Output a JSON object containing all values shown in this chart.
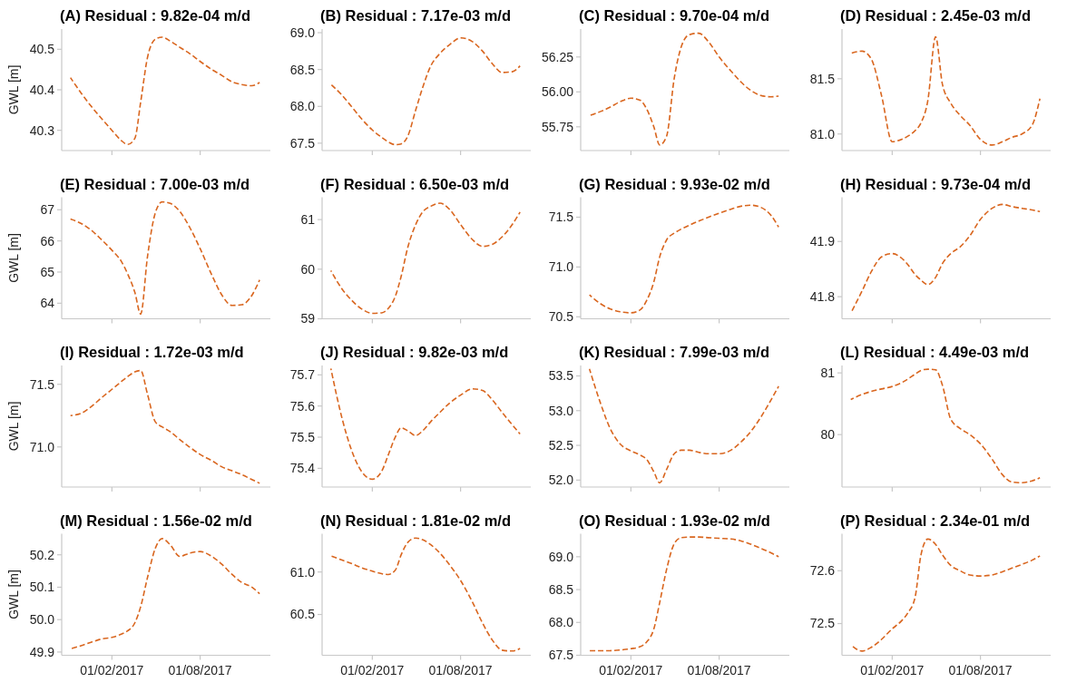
{
  "chart_data": [
    {
      "type": "line",
      "title": "(A) Residual : 9.82e-04 m/d",
      "ylabel": "GWL [m]",
      "tick_labels": "y",
      "line_style": "dashed",
      "xlim": [
        "2016-10-21",
        "2017-12-23"
      ],
      "xticks": [
        {
          "value": "2017-02-01",
          "label": null
        },
        {
          "value": "2017-08-01",
          "label": null
        }
      ],
      "ylim": [
        40.25,
        40.55
      ],
      "yticks": [
        40.3,
        40.4,
        40.5
      ],
      "x": [
        "2016-11-08",
        "2016-12-01",
        "2016-12-20",
        "2017-01-10",
        "2017-02-01",
        "2017-02-20",
        "2017-03-05",
        "2017-03-20",
        "2017-04-01",
        "2017-04-15",
        "2017-05-01",
        "2017-05-15",
        "2017-06-01",
        "2017-06-20",
        "2017-07-10",
        "2017-08-01",
        "2017-08-25",
        "2017-09-15",
        "2017-10-05",
        "2017-10-25",
        "2017-11-15",
        "2017-12-01"
      ],
      "series": [
        {
          "color": "#d9661f",
          "values": [
            40.43,
            40.39,
            40.36,
            40.33,
            40.3,
            40.275,
            40.265,
            40.28,
            40.37,
            40.48,
            40.525,
            40.53,
            40.52,
            40.505,
            40.49,
            40.47,
            40.45,
            40.435,
            40.42,
            40.413,
            40.41,
            40.418
          ]
        }
      ]
    },
    {
      "type": "line",
      "title": "(B) Residual : 7.17e-03 m/d",
      "tick_labels": "y",
      "line_style": "dashed",
      "xlim": [
        "2016-10-21",
        "2017-12-23"
      ],
      "xticks": [
        {
          "value": "2017-02-01",
          "label": null
        },
        {
          "value": "2017-08-01",
          "label": null
        }
      ],
      "ylim": [
        67.4,
        69.05
      ],
      "yticks": [
        67.5,
        {
          "value": 68,
          "label": "68.0"
        },
        68.5,
        {
          "value": 69,
          "label": "69.0"
        }
      ],
      "x": [
        "2016-11-08",
        "2016-12-01",
        "2016-12-20",
        "2017-01-10",
        "2017-02-01",
        "2017-02-20",
        "2017-03-05",
        "2017-03-20",
        "2017-04-01",
        "2017-04-15",
        "2017-05-01",
        "2017-05-15",
        "2017-06-01",
        "2017-06-20",
        "2017-07-10",
        "2017-08-01",
        "2017-08-25",
        "2017-09-15",
        "2017-10-05",
        "2017-10-25",
        "2017-11-15",
        "2017-12-01"
      ],
      "series": [
        {
          "color": "#d9661f",
          "values": [
            68.3,
            68.15,
            68.0,
            67.83,
            67.68,
            67.58,
            67.52,
            67.48,
            67.49,
            67.6,
            67.95,
            68.25,
            68.55,
            68.72,
            68.84,
            68.93,
            68.88,
            68.75,
            68.58,
            68.46,
            68.47,
            68.55
          ]
        }
      ]
    },
    {
      "type": "line",
      "title": "(C) Residual : 9.70e-04 m/d",
      "tick_labels": "y",
      "line_style": "dashed",
      "xlim": [
        "2016-10-21",
        "2017-12-23"
      ],
      "xticks": [
        {
          "value": "2017-02-01",
          "label": null
        },
        {
          "value": "2017-08-01",
          "label": null
        }
      ],
      "ylim": [
        55.58,
        56.45
      ],
      "yticks": [
        55.75,
        {
          "value": 56,
          "label": "56.00"
        },
        56.25
      ],
      "x": [
        "2016-11-08",
        "2016-12-01",
        "2016-12-20",
        "2017-01-10",
        "2017-02-01",
        "2017-02-20",
        "2017-03-05",
        "2017-03-20",
        "2017-04-01",
        "2017-04-15",
        "2017-05-01",
        "2017-05-15",
        "2017-06-01",
        "2017-06-20",
        "2017-07-10",
        "2017-08-01",
        "2017-08-25",
        "2017-09-15",
        "2017-10-05",
        "2017-10-25",
        "2017-11-15",
        "2017-12-01"
      ],
      "series": [
        {
          "color": "#d9661f",
          "values": [
            55.83,
            55.86,
            55.89,
            55.93,
            55.955,
            55.94,
            55.88,
            55.75,
            55.62,
            55.68,
            56.1,
            56.32,
            56.41,
            56.42,
            56.36,
            56.25,
            56.15,
            56.07,
            56.01,
            55.975,
            55.965,
            55.97
          ]
        }
      ]
    },
    {
      "type": "line",
      "title": "(D) Residual : 2.45e-03 m/d",
      "tick_labels": "y",
      "line_style": "dashed",
      "xlim": [
        "2016-10-21",
        "2017-12-23"
      ],
      "xticks": [
        {
          "value": "2017-02-01",
          "label": null
        },
        {
          "value": "2017-08-01",
          "label": null
        }
      ],
      "ylim": [
        80.85,
        81.95
      ],
      "yticks": [
        {
          "value": 81,
          "label": "81.0"
        },
        81.5
      ],
      "x": [
        "2016-11-08",
        "2016-12-01",
        "2016-12-20",
        "2017-01-10",
        "2017-02-01",
        "2017-02-20",
        "2017-03-05",
        "2017-03-20",
        "2017-04-01",
        "2017-04-15",
        "2017-05-01",
        "2017-05-15",
        "2017-06-01",
        "2017-06-20",
        "2017-07-10",
        "2017-08-01",
        "2017-08-25",
        "2017-09-15",
        "2017-10-05",
        "2017-10-25",
        "2017-11-15",
        "2017-12-01"
      ],
      "series": [
        {
          "color": "#d9661f",
          "values": [
            81.73,
            81.75,
            81.68,
            81.35,
            80.93,
            80.95,
            80.98,
            81.03,
            81.1,
            81.3,
            81.88,
            81.45,
            81.28,
            81.17,
            81.08,
            80.95,
            80.9,
            80.93,
            80.97,
            81.0,
            81.08,
            81.32
          ]
        }
      ]
    },
    {
      "type": "line",
      "title": "(E) Residual : 7.00e-03 m/d",
      "ylabel": "GWL [m]",
      "tick_labels": "y",
      "line_style": "dashed",
      "xlim": [
        "2016-10-21",
        "2017-12-23"
      ],
      "xticks": [
        {
          "value": "2017-02-01",
          "label": null
        },
        {
          "value": "2017-08-01",
          "label": null
        }
      ],
      "ylim": [
        63.5,
        67.4
      ],
      "yticks": [
        64,
        65,
        66,
        67
      ],
      "x": [
        "2016-11-08",
        "2016-12-01",
        "2016-12-20",
        "2017-01-10",
        "2017-02-01",
        "2017-02-20",
        "2017-03-05",
        "2017-03-20",
        "2017-04-01",
        "2017-04-15",
        "2017-05-01",
        "2017-05-15",
        "2017-06-01",
        "2017-06-20",
        "2017-07-10",
        "2017-08-01",
        "2017-08-25",
        "2017-09-15",
        "2017-10-05",
        "2017-10-25",
        "2017-11-15",
        "2017-12-01"
      ],
      "series": [
        {
          "color": "#d9661f",
          "values": [
            66.7,
            66.55,
            66.35,
            66.05,
            65.7,
            65.35,
            64.95,
            64.35,
            63.65,
            65.5,
            66.9,
            67.25,
            67.2,
            66.95,
            66.45,
            65.75,
            64.9,
            64.25,
            63.93,
            63.95,
            64.25,
            64.75
          ]
        }
      ]
    },
    {
      "type": "line",
      "title": "(F) Residual : 6.50e-03 m/d",
      "tick_labels": "y",
      "line_style": "dashed",
      "xlim": [
        "2016-10-21",
        "2017-12-23"
      ],
      "xticks": [
        {
          "value": "2017-02-01",
          "label": null
        },
        {
          "value": "2017-08-01",
          "label": null
        }
      ],
      "ylim": [
        59,
        61.45
      ],
      "yticks": [
        59,
        60,
        61
      ],
      "x": [
        "2016-11-08",
        "2016-12-01",
        "2016-12-20",
        "2017-01-10",
        "2017-02-01",
        "2017-02-20",
        "2017-03-05",
        "2017-03-20",
        "2017-04-01",
        "2017-04-15",
        "2017-05-01",
        "2017-05-15",
        "2017-06-01",
        "2017-06-20",
        "2017-07-10",
        "2017-08-01",
        "2017-08-25",
        "2017-09-15",
        "2017-10-05",
        "2017-10-25",
        "2017-11-15",
        "2017-12-01"
      ],
      "series": [
        {
          "color": "#d9661f",
          "values": [
            59.97,
            59.6,
            59.38,
            59.2,
            59.11,
            59.12,
            59.2,
            59.45,
            59.85,
            60.45,
            60.9,
            61.15,
            61.27,
            61.33,
            61.2,
            60.9,
            60.6,
            60.46,
            60.5,
            60.65,
            60.9,
            61.15
          ]
        }
      ]
    },
    {
      "type": "line",
      "title": "(G) Residual : 9.93e-02 m/d",
      "tick_labels": "y",
      "line_style": "dashed",
      "xlim": [
        "2016-10-21",
        "2017-12-23"
      ],
      "xticks": [
        {
          "value": "2017-02-01",
          "label": null
        },
        {
          "value": "2017-08-01",
          "label": null
        }
      ],
      "ylim": [
        70.48,
        71.7
      ],
      "yticks": [
        70.5,
        {
          "value": 71,
          "label": "71.0"
        },
        71.5
      ],
      "x": [
        "2016-11-08",
        "2016-12-01",
        "2016-12-20",
        "2017-01-10",
        "2017-02-01",
        "2017-02-20",
        "2017-03-05",
        "2017-03-20",
        "2017-04-01",
        "2017-04-15",
        "2017-05-01",
        "2017-05-15",
        "2017-06-01",
        "2017-06-20",
        "2017-07-10",
        "2017-08-01",
        "2017-08-25",
        "2017-09-15",
        "2017-10-05",
        "2017-10-25",
        "2017-11-15",
        "2017-12-01"
      ],
      "series": [
        {
          "color": "#d9661f",
          "values": [
            70.72,
            70.63,
            70.58,
            70.55,
            70.54,
            70.57,
            70.66,
            70.85,
            71.1,
            71.27,
            71.34,
            71.38,
            71.42,
            71.46,
            71.5,
            71.54,
            71.58,
            71.61,
            71.62,
            71.6,
            71.52,
            71.4
          ]
        }
      ]
    },
    {
      "type": "line",
      "title": "(H) Residual : 9.73e-04 m/d",
      "tick_labels": "y",
      "line_style": "dashed",
      "xlim": [
        "2016-10-21",
        "2017-12-23"
      ],
      "xticks": [
        {
          "value": "2017-02-01",
          "label": null
        },
        {
          "value": "2017-08-01",
          "label": null
        }
      ],
      "ylim": [
        41.76,
        41.98
      ],
      "yticks": [
        41.8,
        41.9
      ],
      "x": [
        "2016-11-08",
        "2016-12-01",
        "2016-12-20",
        "2017-01-10",
        "2017-02-01",
        "2017-02-20",
        "2017-03-05",
        "2017-03-20",
        "2017-04-01",
        "2017-04-15",
        "2017-05-01",
        "2017-05-15",
        "2017-06-01",
        "2017-06-20",
        "2017-07-10",
        "2017-08-01",
        "2017-08-25",
        "2017-09-15",
        "2017-10-05",
        "2017-10-25",
        "2017-11-15",
        "2017-12-01"
      ],
      "series": [
        {
          "color": "#d9661f",
          "values": [
            41.77,
            41.81,
            41.845,
            41.872,
            41.878,
            41.87,
            41.858,
            41.84,
            41.83,
            41.822,
            41.835,
            41.86,
            41.878,
            41.89,
            41.91,
            41.94,
            41.96,
            41.967,
            41.963,
            41.96,
            41.957,
            41.954
          ]
        }
      ]
    },
    {
      "type": "line",
      "title": "(I) Residual : 1.72e-03 m/d",
      "ylabel": "GWL [m]",
      "tick_labels": "y",
      "line_style": "dashed",
      "xlim": [
        "2016-10-21",
        "2017-12-23"
      ],
      "xticks": [
        {
          "value": "2017-02-01",
          "label": null
        },
        {
          "value": "2017-08-01",
          "label": null
        }
      ],
      "ylim": [
        70.68,
        71.65
      ],
      "yticks": [
        {
          "value": 71,
          "label": "71.0"
        },
        71.5
      ],
      "x": [
        "2016-11-08",
        "2016-12-01",
        "2016-12-20",
        "2017-01-10",
        "2017-02-01",
        "2017-02-20",
        "2017-03-05",
        "2017-03-20",
        "2017-04-01",
        "2017-04-15",
        "2017-05-01",
        "2017-05-15",
        "2017-06-01",
        "2017-06-20",
        "2017-07-10",
        "2017-08-01",
        "2017-08-25",
        "2017-09-15",
        "2017-10-05",
        "2017-10-25",
        "2017-11-15",
        "2017-12-01"
      ],
      "series": [
        {
          "color": "#d9661f",
          "values": [
            71.25,
            71.27,
            71.32,
            71.39,
            71.46,
            71.52,
            71.56,
            71.6,
            71.61,
            71.42,
            71.2,
            71.16,
            71.12,
            71.06,
            71.0,
            70.94,
            70.89,
            70.84,
            70.81,
            70.78,
            70.74,
            70.71
          ]
        }
      ]
    },
    {
      "type": "line",
      "title": "(J) Residual : 9.82e-03 m/d",
      "tick_labels": "y",
      "line_style": "dashed",
      "xlim": [
        "2016-10-21",
        "2017-12-23"
      ],
      "xticks": [
        {
          "value": "2017-02-01",
          "label": null
        },
        {
          "value": "2017-08-01",
          "label": null
        }
      ],
      "ylim": [
        75.34,
        75.73
      ],
      "yticks": [
        75.4,
        75.5,
        75.6,
        75.7
      ],
      "x": [
        "2016-11-08",
        "2016-12-01",
        "2016-12-20",
        "2017-01-10",
        "2017-02-01",
        "2017-02-20",
        "2017-03-05",
        "2017-03-20",
        "2017-04-01",
        "2017-04-15",
        "2017-05-01",
        "2017-05-15",
        "2017-06-01",
        "2017-06-20",
        "2017-07-10",
        "2017-08-01",
        "2017-08-25",
        "2017-09-15",
        "2017-10-05",
        "2017-10-25",
        "2017-11-15",
        "2017-12-01"
      ],
      "series": [
        {
          "color": "#d9661f",
          "values": [
            75.72,
            75.56,
            75.46,
            75.39,
            75.365,
            75.39,
            75.44,
            75.5,
            75.53,
            75.52,
            75.505,
            75.52,
            75.55,
            75.58,
            75.61,
            75.635,
            75.655,
            75.65,
            75.62,
            75.58,
            75.54,
            75.51
          ]
        }
      ]
    },
    {
      "type": "line",
      "title": "(K) Residual : 7.99e-03 m/d",
      "tick_labels": "y",
      "line_style": "dashed",
      "xlim": [
        "2016-10-21",
        "2017-12-23"
      ],
      "xticks": [
        {
          "value": "2017-02-01",
          "label": null
        },
        {
          "value": "2017-08-01",
          "label": null
        }
      ],
      "ylim": [
        51.9,
        53.65
      ],
      "yticks": [
        {
          "value": 52,
          "label": "52.0"
        },
        52.5,
        {
          "value": 53,
          "label": "53.0"
        },
        53.5
      ],
      "x": [
        "2016-11-08",
        "2016-12-01",
        "2016-12-20",
        "2017-01-10",
        "2017-02-01",
        "2017-02-20",
        "2017-03-05",
        "2017-03-20",
        "2017-04-01",
        "2017-04-15",
        "2017-05-01",
        "2017-05-15",
        "2017-06-01",
        "2017-06-20",
        "2017-07-10",
        "2017-08-01",
        "2017-08-25",
        "2017-09-15",
        "2017-10-05",
        "2017-10-25",
        "2017-11-15",
        "2017-12-01"
      ],
      "series": [
        {
          "color": "#d9661f",
          "values": [
            53.6,
            53.1,
            52.75,
            52.52,
            52.42,
            52.36,
            52.3,
            52.12,
            51.96,
            52.15,
            52.38,
            52.43,
            52.43,
            52.4,
            52.38,
            52.38,
            52.43,
            52.55,
            52.7,
            52.9,
            53.15,
            53.35
          ]
        }
      ]
    },
    {
      "type": "line",
      "title": "(L) Residual : 4.49e-03 m/d",
      "tick_labels": "y",
      "line_style": "dashed",
      "xlim": [
        "2016-10-21",
        "2017-12-23"
      ],
      "xticks": [
        {
          "value": "2017-02-01",
          "label": null
        },
        {
          "value": "2017-08-01",
          "label": null
        }
      ],
      "ylim": [
        79.15,
        81.12
      ],
      "yticks": [
        80,
        81
      ],
      "x": [
        "2016-11-08",
        "2016-12-01",
        "2016-12-20",
        "2017-01-10",
        "2017-02-01",
        "2017-02-20",
        "2017-03-05",
        "2017-03-20",
        "2017-04-01",
        "2017-04-15",
        "2017-05-01",
        "2017-05-15",
        "2017-06-01",
        "2017-06-20",
        "2017-07-10",
        "2017-08-01",
        "2017-08-25",
        "2017-09-15",
        "2017-10-05",
        "2017-10-25",
        "2017-11-15",
        "2017-12-01"
      ],
      "series": [
        {
          "color": "#d9661f",
          "values": [
            80.57,
            80.65,
            80.7,
            80.74,
            80.78,
            80.84,
            80.9,
            80.98,
            81.04,
            81.06,
            81.05,
            80.8,
            80.25,
            80.1,
            80.0,
            79.85,
            79.6,
            79.35,
            79.23,
            79.22,
            79.25,
            79.3
          ]
        }
      ]
    },
    {
      "type": "line",
      "title": "(M) Residual : 1.56e-02 m/d",
      "ylabel": "GWL [m]",
      "line_style": "dashed",
      "xlim": [
        "2016-10-21",
        "2017-12-23"
      ],
      "xticks": [
        {
          "value": "2017-02-01",
          "label": "01/02/2017"
        },
        {
          "value": "2017-08-01",
          "label": "01/08/2017"
        }
      ],
      "ylim": [
        49.89,
        50.265
      ],
      "yticks": [
        49.9,
        {
          "value": 50,
          "label": "50.0"
        },
        50.1,
        50.2
      ],
      "x": [
        "2016-11-08",
        "2016-12-01",
        "2016-12-20",
        "2017-01-10",
        "2017-02-01",
        "2017-02-20",
        "2017-03-05",
        "2017-03-20",
        "2017-04-01",
        "2017-04-15",
        "2017-05-01",
        "2017-05-15",
        "2017-06-01",
        "2017-06-20",
        "2017-07-10",
        "2017-08-01",
        "2017-08-25",
        "2017-09-15",
        "2017-10-05",
        "2017-10-25",
        "2017-11-15",
        "2017-12-01"
      ],
      "series": [
        {
          "color": "#d9661f",
          "values": [
            49.91,
            49.92,
            49.93,
            49.94,
            49.945,
            49.955,
            49.965,
            49.99,
            50.04,
            50.13,
            50.22,
            50.25,
            50.23,
            50.195,
            50.205,
            50.21,
            50.195,
            50.17,
            50.14,
            50.115,
            50.1,
            50.08
          ]
        }
      ]
    },
    {
      "type": "line",
      "title": "(N) Residual : 1.81e-02 m/d",
      "line_style": "dashed",
      "xlim": [
        "2016-10-21",
        "2017-12-23"
      ],
      "xticks": [
        {
          "value": "2017-02-01",
          "label": "01/02/2017"
        },
        {
          "value": "2017-08-01",
          "label": "01/08/2017"
        }
      ],
      "ylim": [
        60.02,
        61.45
      ],
      "yticks": [
        60.5,
        {
          "value": 61,
          "label": "61.0"
        }
      ],
      "x": [
        "2016-11-08",
        "2016-12-01",
        "2016-12-20",
        "2017-01-10",
        "2017-02-01",
        "2017-02-20",
        "2017-03-05",
        "2017-03-20",
        "2017-04-01",
        "2017-04-15",
        "2017-05-01",
        "2017-05-15",
        "2017-06-01",
        "2017-06-20",
        "2017-07-10",
        "2017-08-01",
        "2017-08-25",
        "2017-09-15",
        "2017-10-05",
        "2017-10-25",
        "2017-11-15",
        "2017-12-01"
      ],
      "series": [
        {
          "color": "#d9661f",
          "values": [
            61.19,
            61.14,
            61.1,
            61.05,
            61.01,
            60.98,
            60.97,
            61.02,
            61.2,
            61.35,
            61.4,
            61.38,
            61.32,
            61.22,
            61.08,
            60.9,
            60.65,
            60.4,
            60.2,
            60.08,
            60.07,
            60.1
          ]
        }
      ]
    },
    {
      "type": "line",
      "title": "(O) Residual : 1.93e-02 m/d",
      "line_style": "dashed",
      "xlim": [
        "2016-10-21",
        "2017-12-23"
      ],
      "xticks": [
        {
          "value": "2017-02-01",
          "label": "01/02/2017"
        },
        {
          "value": "2017-08-01",
          "label": "01/08/2017"
        }
      ],
      "ylim": [
        67.5,
        69.35
      ],
      "yticks": [
        67.5,
        {
          "value": 68,
          "label": "68.0"
        },
        68.5,
        {
          "value": 69,
          "label": "69.0"
        }
      ],
      "x": [
        "2016-11-08",
        "2016-12-01",
        "2016-12-20",
        "2017-01-10",
        "2017-02-01",
        "2017-02-20",
        "2017-03-05",
        "2017-03-20",
        "2017-04-01",
        "2017-04-15",
        "2017-05-01",
        "2017-05-15",
        "2017-06-01",
        "2017-06-20",
        "2017-07-10",
        "2017-08-01",
        "2017-08-25",
        "2017-09-15",
        "2017-10-05",
        "2017-10-25",
        "2017-11-15",
        "2017-12-01"
      ],
      "series": [
        {
          "color": "#d9661f",
          "values": [
            67.57,
            67.57,
            67.57,
            67.58,
            67.6,
            67.63,
            67.7,
            67.9,
            68.3,
            68.8,
            69.2,
            69.29,
            69.3,
            69.3,
            69.29,
            69.28,
            69.27,
            69.24,
            69.19,
            69.13,
            69.06,
            69.0
          ]
        }
      ]
    },
    {
      "type": "line",
      "title": "(P) Residual : 2.34e-01 m/d",
      "line_style": "dashed",
      "xlim": [
        "2016-10-21",
        "2017-12-23"
      ],
      "xticks": [
        {
          "value": "2017-02-01",
          "label": "01/02/2017"
        },
        {
          "value": "2017-08-01",
          "label": "01/08/2017"
        }
      ],
      "ylim": [
        72.44,
        72.67
      ],
      "yticks": [
        72.5,
        72.6
      ],
      "x": [
        "2016-11-08",
        "2016-12-01",
        "2016-12-20",
        "2017-01-10",
        "2017-02-01",
        "2017-02-20",
        "2017-03-05",
        "2017-03-20",
        "2017-04-01",
        "2017-04-15",
        "2017-05-01",
        "2017-05-15",
        "2017-06-01",
        "2017-06-20",
        "2017-07-10",
        "2017-08-01",
        "2017-08-25",
        "2017-09-15",
        "2017-10-05",
        "2017-10-25",
        "2017-11-15",
        "2017-12-01"
      ],
      "series": [
        {
          "color": "#d9661f",
          "values": [
            72.46,
            72.448,
            72.455,
            72.47,
            72.49,
            72.505,
            72.52,
            72.55,
            72.63,
            72.66,
            72.65,
            72.63,
            72.61,
            72.6,
            72.592,
            72.59,
            72.592,
            72.598,
            72.605,
            72.612,
            72.62,
            72.628
          ]
        }
      ]
    }
  ]
}
